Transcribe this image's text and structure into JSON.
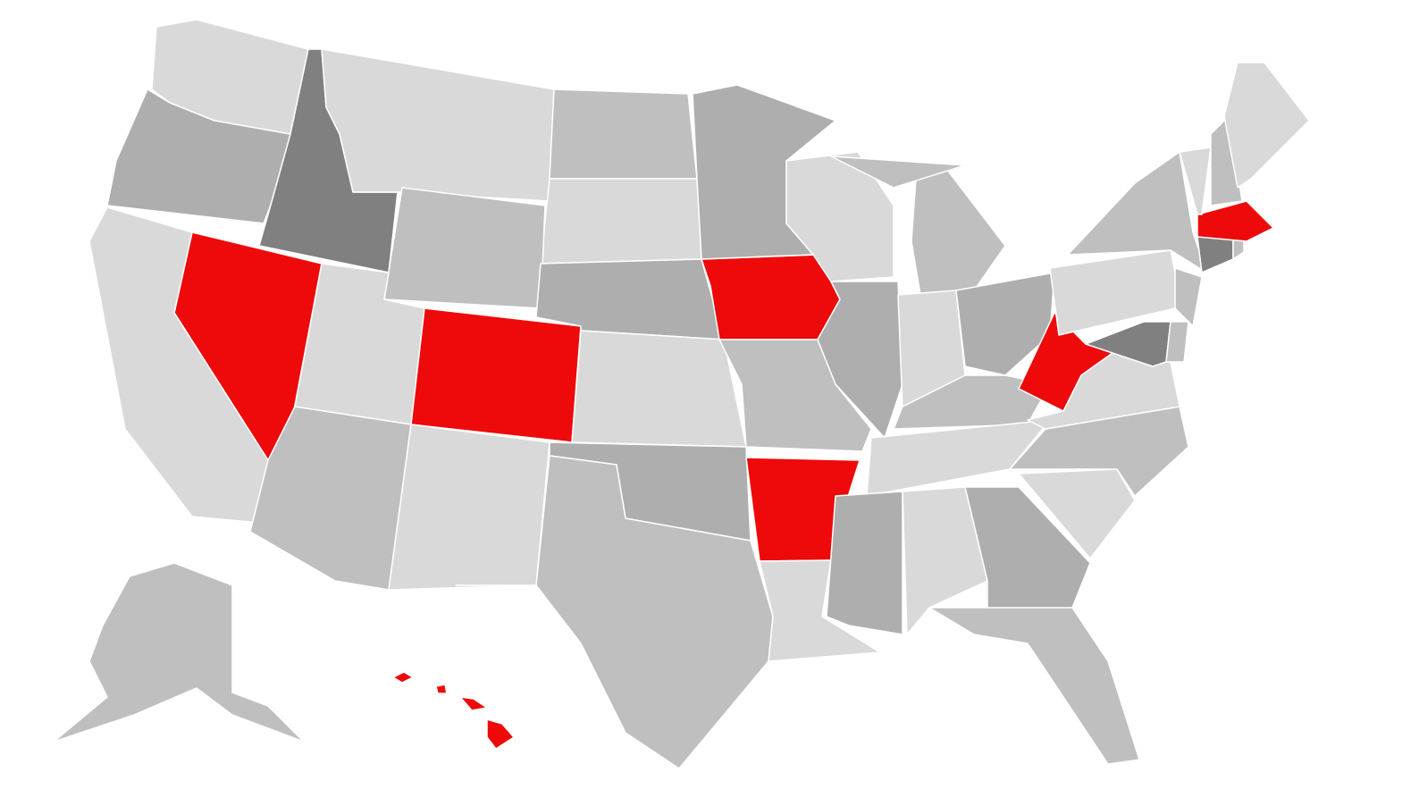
{
  "palette": {
    "light": "#d9d9d9",
    "medium": "#bfbfbf",
    "dark": "#aeaeae",
    "darkest": "#808080",
    "highlight": "#ee0a0a",
    "border": "#ffffff",
    "background": "#ffffff"
  },
  "states": {
    "WA": "light",
    "OR": "dark",
    "ID": "darkest",
    "MT": "light",
    "ND": "medium",
    "SD": "light",
    "WY": "medium",
    "NV": "highlight",
    "CA": "light",
    "UT": "light",
    "CO": "highlight",
    "AZ": "medium",
    "NM": "light",
    "NE": "dark",
    "KS": "light",
    "OK": "dark",
    "TX": "medium",
    "IA": "highlight",
    "MN": "dark",
    "MO": "medium",
    "AR": "highlight",
    "LA": "light",
    "WI": "light",
    "IL": "dark",
    "MI": "medium",
    "IN": "light",
    "OH": "dark",
    "KY": "medium",
    "TN": "light",
    "MS": "dark",
    "AL": "light",
    "GA": "dark",
    "FL": "medium",
    "SC": "light",
    "NC": "medium",
    "VA": "light",
    "WV": "highlight",
    "PA": "light",
    "NY": "medium",
    "NJ": "medium",
    "MD": "darkest",
    "DE": "medium",
    "CT": "darkest",
    "RI": "medium",
    "MA": "highlight",
    "VT": "light",
    "NH": "medium",
    "ME": "light",
    "AK": "medium",
    "HI": "highlight"
  }
}
